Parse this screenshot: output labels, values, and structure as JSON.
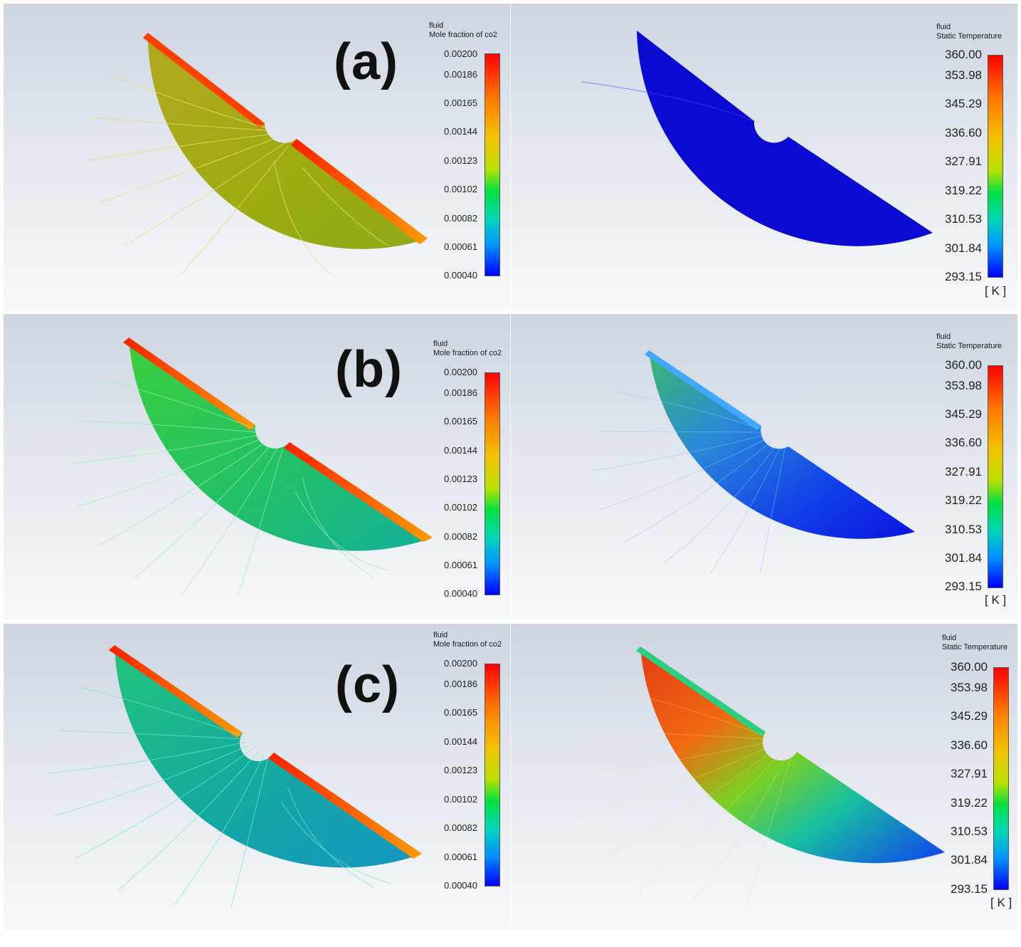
{
  "figure": {
    "rows": [
      {
        "label": "(a)",
        "co2_legend": {
          "title": "fluid",
          "subtitle": "Mole fraction of co2",
          "ticks": [
            "0.00200",
            "0.00186",
            "0.00165",
            "0.00144",
            "0.00123",
            "0.00102",
            "0.00082",
            "0.00061",
            "0.00040"
          ]
        },
        "temp_legend": {
          "title": "fluid",
          "subtitle": "Static Temperature",
          "ticks": [
            "360.00",
            "353.98",
            "345.29",
            "336.60",
            "327.91",
            "319.22",
            "310.53",
            "301.84",
            "293.15"
          ],
          "unit": "[ K ]"
        },
        "co2_field_color": "#a8ac18",
        "temp_field_color": "#0a0ad2"
      },
      {
        "label": "(b)",
        "co2_legend": {
          "title": "fluid",
          "subtitle": "Mole fraction of co2",
          "ticks": [
            "0.00200",
            "0.00186",
            "0.00165",
            "0.00144",
            "0.00123",
            "0.00102",
            "0.00082",
            "0.00061",
            "0.00040"
          ]
        },
        "temp_legend": {
          "title": "fluid",
          "subtitle": "Static Temperature",
          "ticks": [
            "360.00",
            "353.98",
            "345.29",
            "336.60",
            "327.91",
            "319.22",
            "310.53",
            "301.84",
            "293.15"
          ],
          "unit": "[ K ]"
        },
        "co2_field_color": "#2fc85a",
        "temp_field_color": "#1a5ae0"
      },
      {
        "label": "(c)",
        "co2_legend": {
          "title": "fluid",
          "subtitle": "Mole fraction of co2",
          "ticks": [
            "0.00200",
            "0.00186",
            "0.00165",
            "0.00144",
            "0.00123",
            "0.00102",
            "0.00082",
            "0.00061",
            "0.00040"
          ]
        },
        "temp_legend": {
          "title": "fluid",
          "subtitle": "Static Temperature",
          "ticks": [
            "360.00",
            "353.98",
            "345.29",
            "336.60",
            "327.91",
            "319.22",
            "310.53",
            "301.84",
            "293.15"
          ],
          "unit": "[ K ]"
        },
        "co2_field_color": "#1bb89a",
        "temp_field_color": "#3bd040"
      }
    ]
  }
}
